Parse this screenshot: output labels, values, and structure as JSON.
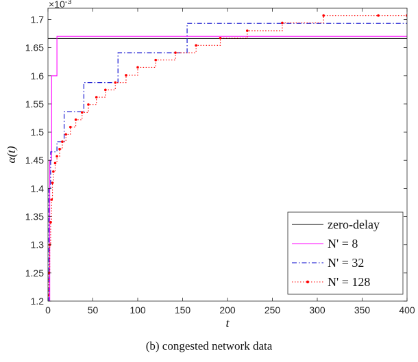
{
  "caption": "(b) congested network data",
  "chart_data": {
    "type": "line",
    "xlabel": "t",
    "ylabel": "α(t)",
    "y_exponent_label": "×10",
    "y_exponent_power": "-3",
    "xlim": [
      0,
      400
    ],
    "ylim": [
      1.2,
      1.72
    ],
    "x_ticks": [
      0,
      50,
      100,
      150,
      200,
      250,
      300,
      350,
      400
    ],
    "x_tick_labels": [
      "0",
      "50",
      "100",
      "150",
      "200",
      "250",
      "300",
      "350",
      "400"
    ],
    "y_ticks": [
      1.2,
      1.25,
      1.3,
      1.35,
      1.4,
      1.45,
      1.5,
      1.55,
      1.6,
      1.65,
      1.7
    ],
    "y_tick_labels": [
      "1.2",
      "1.25",
      "1.3",
      "1.35",
      "1.4",
      "1.45",
      "1.5",
      "1.55",
      "1.6",
      "1.65",
      "1.7"
    ],
    "legend_position": "bottom-right",
    "series": [
      {
        "name": "zero-delay",
        "color": "#000000",
        "style": "solid",
        "step": true,
        "x": [
          0,
          400
        ],
        "y": [
          1.666,
          1.666
        ]
      },
      {
        "name": "N' = 8",
        "color": "#ff00ff",
        "style": "solid",
        "step": true,
        "x": [
          0,
          2,
          4,
          10,
          400
        ],
        "y": [
          1.2,
          1.45,
          1.6,
          1.67,
          1.67
        ]
      },
      {
        "name": "N' = 32",
        "color": "#0000cc",
        "style": "dashdot",
        "step": true,
        "x": [
          0,
          1,
          3,
          5,
          10,
          18,
          40,
          78,
          155,
          260,
          400
        ],
        "y": [
          1.2,
          1.4,
          1.465,
          1.465,
          1.483,
          1.536,
          1.588,
          1.641,
          1.693,
          1.693,
          1.693
        ],
        "note_hidden": false
      },
      {
        "name": "N' = 128",
        "color": "#ff0000",
        "style": "dotted",
        "marker": "dot",
        "step": true,
        "x": [
          0,
          1,
          2,
          3,
          4,
          5,
          6,
          8,
          10,
          13,
          16,
          20,
          25,
          31,
          38,
          45,
          54,
          64,
          75,
          87,
          100,
          120,
          142,
          165,
          192,
          222,
          261,
          307,
          368,
          400
        ],
        "y": [
          1.21,
          1.25,
          1.3,
          1.34,
          1.38,
          1.41,
          1.43,
          1.445,
          1.457,
          1.47,
          1.483,
          1.496,
          1.509,
          1.522,
          1.535,
          1.549,
          1.562,
          1.575,
          1.588,
          1.601,
          1.615,
          1.628,
          1.641,
          1.654,
          1.667,
          1.68,
          1.694,
          1.707,
          1.707,
          1.707
        ]
      }
    ]
  }
}
